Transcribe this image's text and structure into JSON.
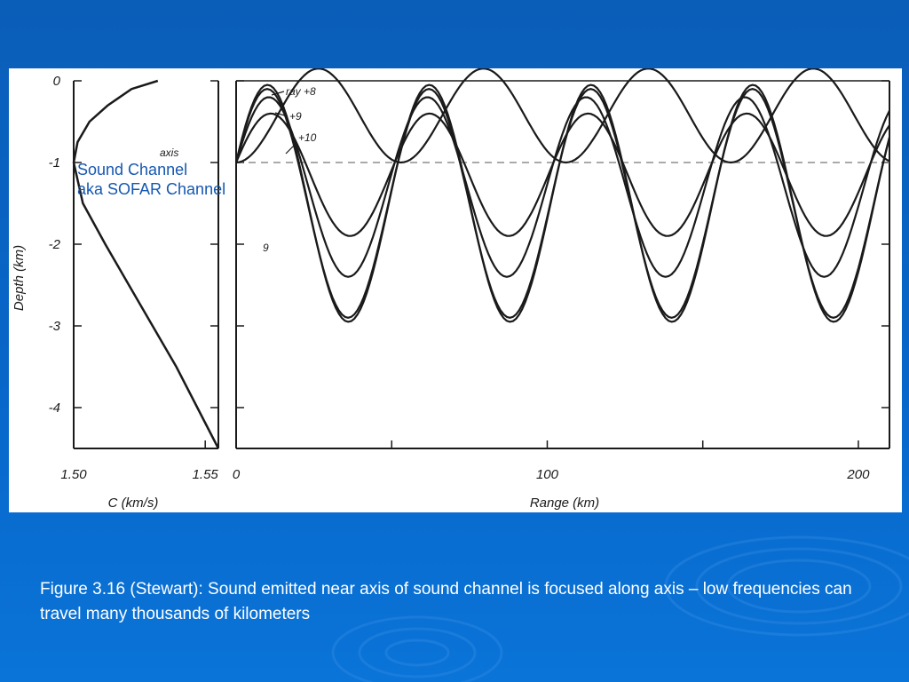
{
  "slide": {
    "overlay_label_line1": "Sound Channel",
    "overlay_label_line2": "aka SOFAR Channel",
    "caption": "Figure 3.16 (Stewart): Sound emitted near axis of sound channel is focused along axis – low frequencies can travel many thousands of kilometers"
  },
  "colors": {
    "background": "#0866c9",
    "panel": "#ffffff",
    "ink": "#1a1a1a",
    "overlay_text": "#1558b0",
    "caption_text": "#ffffff"
  },
  "chart_data": [
    {
      "type": "line",
      "title": "",
      "xlabel": "C (km/s)",
      "ylabel": "Depth (km)",
      "xlim": [
        1.5,
        1.555
      ],
      "ylim": [
        0,
        -4.5
      ],
      "x_ticks": [
        "1.50",
        "1.55"
      ],
      "y_ticks": [
        "0",
        "-1",
        "-2",
        "-3",
        "-4"
      ],
      "series": [
        {
          "points": [
            [
              1.532,
              0
            ],
            [
              1.522,
              -0.1
            ],
            [
              1.513,
              -0.3
            ],
            [
              1.506,
              -0.5
            ],
            [
              1.5015,
              -0.75
            ],
            [
              1.5,
              -1.0
            ],
            [
              1.5035,
              -1.5
            ],
            [
              1.512,
              -2.0
            ],
            [
              1.521,
              -2.5
            ],
            [
              1.53,
              -3.0
            ],
            [
              1.539,
              -3.5
            ],
            [
              1.547,
              -4.0
            ],
            [
              1.555,
              -4.5
            ]
          ]
        }
      ]
    },
    {
      "type": "line",
      "title": "",
      "xlabel": "Range (km)",
      "ylabel": "",
      "xlim": [
        0,
        210
      ],
      "ylim": [
        0,
        -4.5
      ],
      "x_ticks": [
        "0",
        "100",
        "200"
      ],
      "axis_depth": -1.0,
      "axis_label": "axis",
      "annotations": [
        "ray +8",
        "+9",
        "+10",
        "9"
      ],
      "series": [
        {
          "amplitude_km": [
            -1.0,
            0.15
          ],
          "period_km": 53
        },
        {
          "amplitude_km": [
            -0.4,
            -1.9
          ],
          "period_km": 51
        },
        {
          "amplitude_km": [
            -0.2,
            -2.4
          ],
          "period_km": 51
        },
        {
          "amplitude_km": [
            -0.05,
            -2.95
          ],
          "period_km": 52
        },
        {
          "amplitude_km": [
            -0.1,
            -2.9
          ],
          "period_km": 52
        }
      ]
    }
  ]
}
